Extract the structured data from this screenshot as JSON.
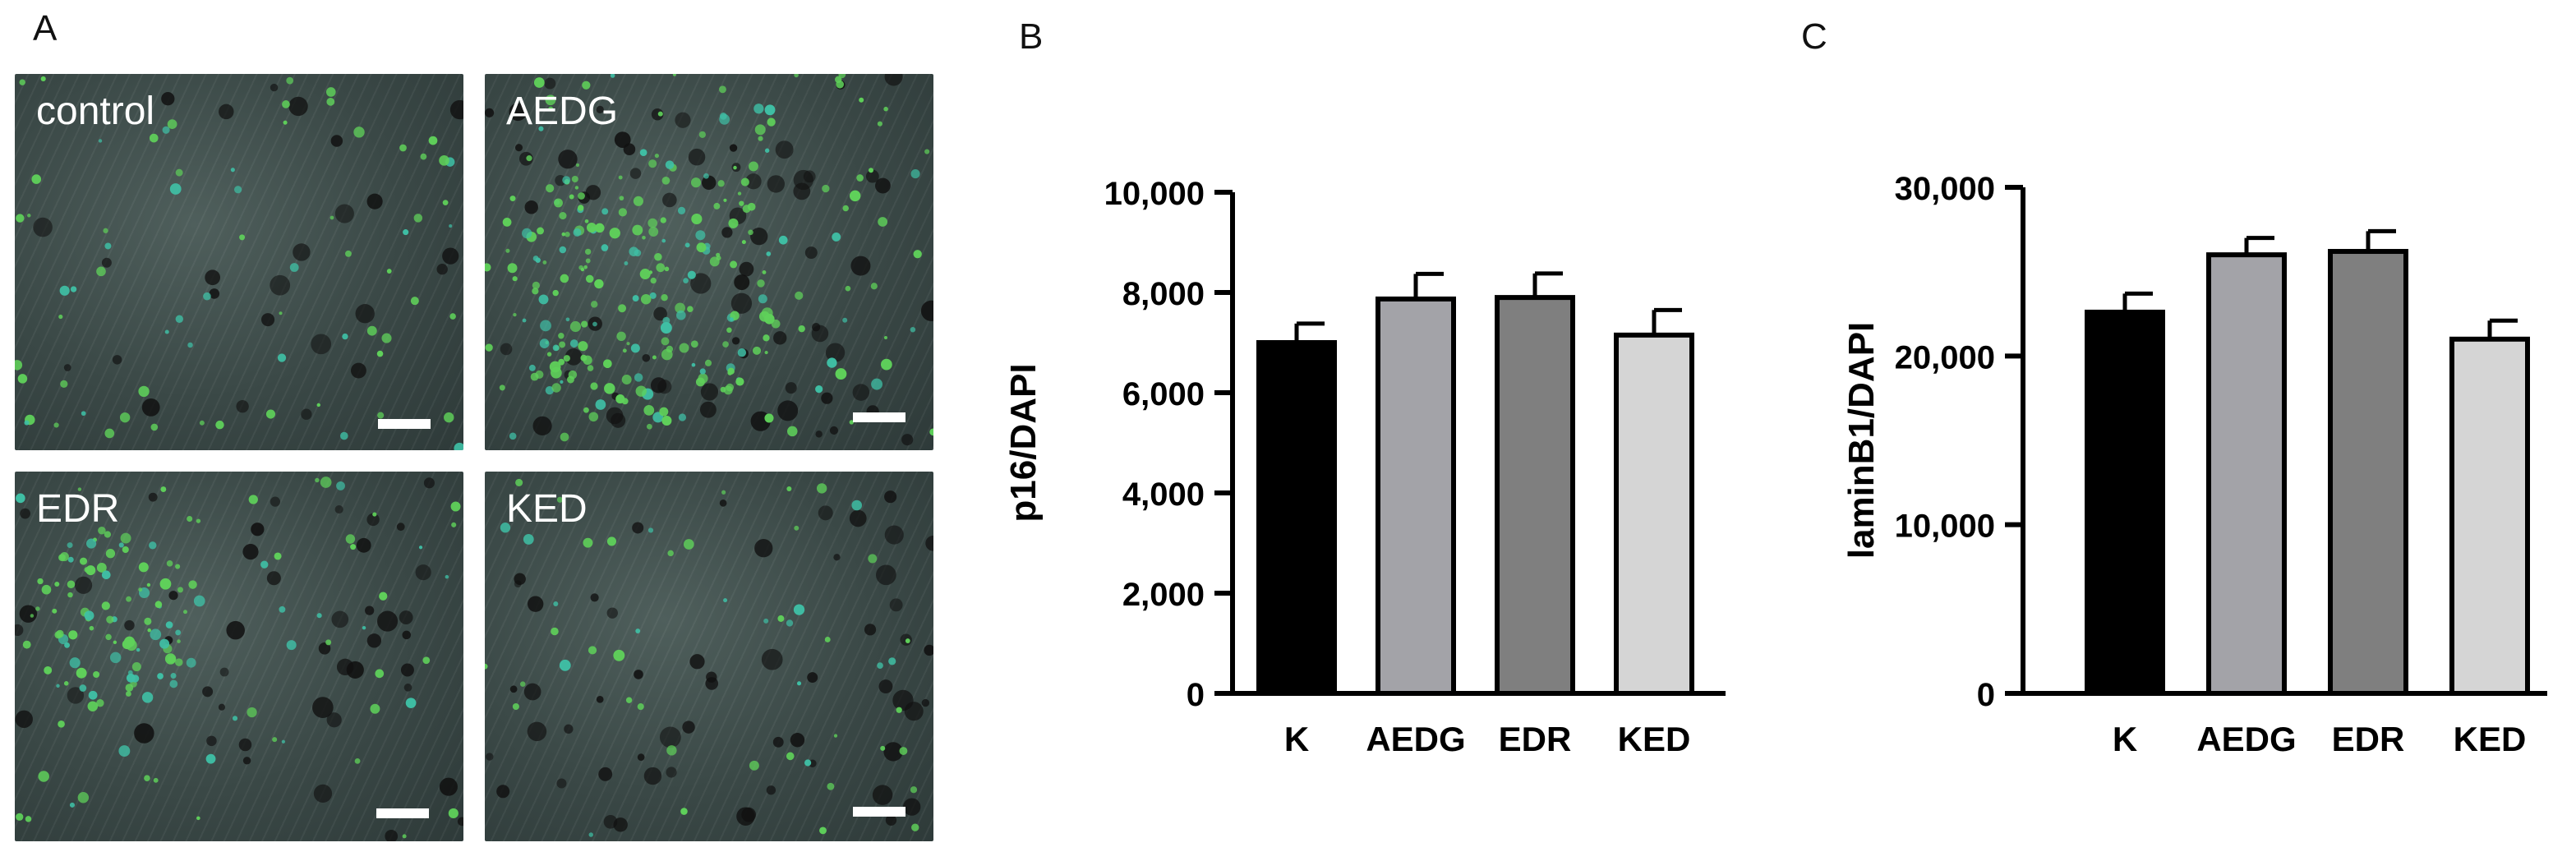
{
  "panels": {
    "a": "A",
    "b": "B",
    "c": "C"
  },
  "micrographs": [
    {
      "label": "control"
    },
    {
      "label": "AEDG"
    },
    {
      "label": "EDR"
    },
    {
      "label": "KED"
    }
  ],
  "colors": {
    "K": "#000000",
    "AEDG": "#a3a3a8",
    "EDR": "#7f7f7f",
    "KED": "#d5d5d5"
  },
  "chart_data": [
    {
      "type": "bar",
      "categories": [
        "K",
        "AEDG",
        "EDR",
        "KED"
      ],
      "values": [
        7000,
        7870,
        7900,
        7150
      ],
      "errors": [
        380,
        500,
        480,
        500
      ],
      "ylabel": "p16/DAPI",
      "ylim": [
        0,
        10000
      ],
      "yticks": [
        0,
        2000,
        4000,
        6000,
        8000,
        10000
      ],
      "ytick_labels": [
        "0",
        "2,000",
        "4,000",
        "6,000",
        "8,000",
        "10,000"
      ],
      "grid": false
    },
    {
      "type": "bar",
      "categories": [
        "K",
        "AEDG",
        "EDR",
        "KED"
      ],
      "values": [
        22600,
        26000,
        26200,
        21000
      ],
      "errors": [
        1100,
        1000,
        1200,
        1100
      ],
      "ylabel": "laminB1/DAPI",
      "ylim": [
        0,
        30000
      ],
      "yticks": [
        0,
        10000,
        20000,
        30000
      ],
      "ytick_labels": [
        "0",
        "10,000",
        "20,000",
        "30,000"
      ],
      "grid": false
    }
  ]
}
